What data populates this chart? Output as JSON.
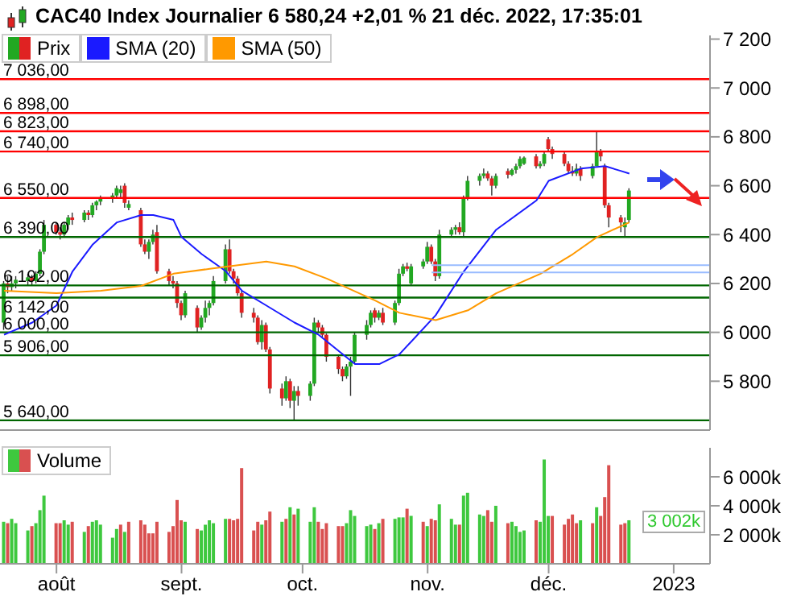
{
  "chart_data": [
    {
      "type": "candlestick",
      "title": "CAC40 Index Journalier 6 580,24 +2,01 % 21 déc. 2022, 17:35:01",
      "legend": "top left",
      "tick_labels": "y",
      "x": [
        "2022-07-19",
        "2022-07-20",
        "2022-07-21",
        "2022-07-22",
        "2022-07-25",
        "2022-07-26",
        "2022-07-27",
        "2022-07-28",
        "2022-07-29",
        "2022-08-01",
        "2022-08-02",
        "2022-08-03",
        "2022-08-04",
        "2022-08-05",
        "2022-08-08",
        "2022-08-09",
        "2022-08-10",
        "2022-08-11",
        "2022-08-12",
        "2022-08-15",
        "2022-08-16",
        "2022-08-17",
        "2022-08-18",
        "2022-08-19",
        "2022-08-22",
        "2022-08-23",
        "2022-08-24",
        "2022-08-25",
        "2022-08-26",
        "2022-08-29",
        "2022-08-30",
        "2022-08-31",
        "2022-09-01",
        "2022-09-02",
        "2022-09-05",
        "2022-09-06",
        "2022-09-07",
        "2022-09-08",
        "2022-09-09",
        "2022-09-12",
        "2022-09-13",
        "2022-09-14",
        "2022-09-15",
        "2022-09-16",
        "2022-09-19",
        "2022-09-20",
        "2022-09-21",
        "2022-09-22",
        "2022-09-23",
        "2022-09-26",
        "2022-09-27",
        "2022-09-28",
        "2022-09-29",
        "2022-09-30",
        "2022-10-03",
        "2022-10-04",
        "2022-10-05",
        "2022-10-06",
        "2022-10-07",
        "2022-10-10",
        "2022-10-11",
        "2022-10-12",
        "2022-10-13",
        "2022-10-14",
        "2022-10-17",
        "2022-10-18",
        "2022-10-19",
        "2022-10-20",
        "2022-10-21",
        "2022-10-24",
        "2022-10-25",
        "2022-10-26",
        "2022-10-27",
        "2022-10-28",
        "2022-10-31",
        "2022-11-01",
        "2022-11-02",
        "2022-11-03",
        "2022-11-04",
        "2022-11-07",
        "2022-11-08",
        "2022-11-09",
        "2022-11-10",
        "2022-11-11",
        "2022-11-14",
        "2022-11-15",
        "2022-11-16",
        "2022-11-17",
        "2022-11-18",
        "2022-11-21",
        "2022-11-22",
        "2022-11-23",
        "2022-11-24",
        "2022-11-25",
        "2022-11-28",
        "2022-11-29",
        "2022-11-30",
        "2022-12-01",
        "2022-12-02",
        "2022-12-05",
        "2022-12-06",
        "2022-12-07",
        "2022-12-08",
        "2022-12-09",
        "2022-12-12",
        "2022-12-13",
        "2022-12-14",
        "2022-12-15",
        "2022-12-16",
        "2022-12-19",
        "2022-12-20",
        "2022-12-21"
      ],
      "series": [
        {
          "name": "Prix",
          "ohlc": [
            [
              6040,
              6210,
              6010,
              6200
            ],
            [
              6200,
              6230,
              6160,
              6185
            ],
            [
              6185,
              6230,
              6170,
              6200
            ],
            [
              6200,
              6230,
              6180,
              6215
            ],
            [
              6210,
              6240,
              6190,
              6225
            ],
            [
              6225,
              6235,
              6190,
              6210
            ],
            [
              6210,
              6250,
              6200,
              6240
            ],
            [
              6240,
              6340,
              6230,
              6330
            ],
            [
              6330,
              6460,
              6320,
              6440
            ],
            [
              6440,
              6450,
              6400,
              6410
            ],
            [
              6410,
              6430,
              6380,
              6400
            ],
            [
              6400,
              6450,
              6390,
              6440
            ],
            [
              6440,
              6480,
              6420,
              6470
            ],
            [
              6470,
              6490,
              6440,
              6460
            ],
            [
              6460,
              6500,
              6450,
              6490
            ],
            [
              6490,
              6500,
              6460,
              6480
            ],
            [
              6480,
              6530,
              6470,
              6520
            ],
            [
              6520,
              6540,
              6500,
              6535
            ],
            [
              6535,
              6560,
              6520,
              6550
            ],
            [
              6550,
              6570,
              6530,
              6560
            ],
            [
              6560,
              6600,
              6550,
              6590
            ],
            [
              6570,
              6600,
              6550,
              6585
            ],
            [
              6600,
              6610,
              6510,
              6530
            ],
            [
              6510,
              6540,
              6500,
              6525
            ],
            [
              6500,
              6510,
              6350,
              6360
            ],
            [
              6360,
              6380,
              6320,
              6330
            ],
            [
              6330,
              6380,
              6300,
              6370
            ],
            [
              6370,
              6420,
              6360,
              6400
            ],
            [
              6410,
              6440,
              6240,
              6250
            ],
            [
              6250,
              6260,
              6190,
              6210
            ],
            [
              6210,
              6230,
              6180,
              6200
            ],
            [
              6200,
              6210,
              6100,
              6120
            ],
            [
              6120,
              6130,
              6050,
              6070
            ],
            [
              6070,
              6170,
              6060,
              6160
            ],
            [
              6100,
              6110,
              6000,
              6020
            ],
            [
              6020,
              6070,
              6010,
              6060
            ],
            [
              6060,
              6130,
              6040,
              6100
            ],
            [
              6100,
              6130,
              6070,
              6120
            ],
            [
              6120,
              6230,
              6110,
              6210
            ],
            [
              6210,
              6360,
              6200,
              6340
            ],
            [
              6340,
              6380,
              6240,
              6250
            ],
            [
              6250,
              6260,
              6200,
              6220
            ],
            [
              6220,
              6230,
              6150,
              6160
            ],
            [
              6160,
              6170,
              6060,
              6080
            ],
            [
              6080,
              6100,
              6040,
              6060
            ],
            [
              6060,
              6070,
              5950,
              5960
            ],
            [
              5960,
              6050,
              5930,
              6030
            ],
            [
              6030,
              6040,
              5920,
              5930
            ],
            [
              5930,
              5940,
              5750,
              5770
            ],
            [
              5770,
              5790,
              5700,
              5730
            ],
            [
              5730,
              5820,
              5720,
              5800
            ],
            [
              5800,
              5810,
              5690,
              5720
            ],
            [
              5720,
              5780,
              5640,
              5760
            ],
            [
              5760,
              5780,
              5700,
              5740
            ],
            [
              5740,
              5800,
              5720,
              5790
            ],
            [
              5790,
              6060,
              5780,
              6040
            ],
            [
              6040,
              6050,
              6000,
              6020
            ],
            [
              6020,
              6030,
              5980,
              5990
            ],
            [
              5990,
              5995,
              5880,
              5900
            ],
            [
              5900,
              5910,
              5830,
              5850
            ],
            [
              5850,
              5860,
              5800,
              5820
            ],
            [
              5820,
              5870,
              5810,
              5860
            ],
            [
              5860,
              5900,
              5740,
              5880
            ],
            [
              5880,
              6000,
              5870,
              5990
            ],
            [
              5990,
              6050,
              5970,
              6030
            ],
            [
              6030,
              6090,
              6020,
              6080
            ],
            [
              6090,
              6100,
              6040,
              6060
            ],
            [
              6060,
              6090,
              6050,
              6080
            ],
            [
              6080,
              6100,
              6030,
              6040
            ],
            [
              6040,
              6130,
              6030,
              6120
            ],
            [
              6120,
              6260,
              6110,
              6240
            ],
            [
              6240,
              6280,
              6230,
              6270
            ],
            [
              6270,
              6285,
              6250,
              6260
            ],
            [
              6200,
              6280,
              6190,
              6270
            ],
            [
              6270,
              6300,
              6260,
              6290
            ],
            [
              6290,
              6370,
              6280,
              6350
            ],
            [
              6350,
              6360,
              6280,
              6290
            ],
            [
              6290,
              6300,
              6210,
              6230
            ],
            [
              6230,
              6420,
              6220,
              6400
            ],
            [
              6400,
              6430,
              6390,
              6420
            ],
            [
              6420,
              6440,
              6400,
              6430
            ],
            [
              6430,
              6450,
              6400,
              6410
            ],
            [
              6410,
              6560,
              6390,
              6550
            ],
            [
              6550,
              6640,
              6540,
              6620
            ],
            [
              6620,
              6650,
              6600,
              6640
            ],
            [
              6640,
              6670,
              6630,
              6650
            ],
            [
              6650,
              6660,
              6620,
              6630
            ],
            [
              6630,
              6640,
              6560,
              6600
            ],
            [
              6600,
              6650,
              6590,
              6640
            ],
            [
              6660,
              6670,
              6630,
              6645
            ],
            [
              6645,
              6670,
              6640,
              6665
            ],
            [
              6665,
              6690,
              6650,
              6680
            ],
            [
              6680,
              6720,
              6670,
              6710
            ],
            [
              6690,
              6720,
              6685,
              6715
            ],
            [
              6720,
              6730,
              6670,
              6680
            ],
            [
              6680,
              6700,
              6670,
              6690
            ],
            [
              6690,
              6740,
              6680,
              6730
            ],
            [
              6790,
              6800,
              6740,
              6750
            ],
            [
              6750,
              6760,
              6710,
              6730
            ],
            [
              6730,
              6740,
              6680,
              6690
            ],
            [
              6690,
              6700,
              6650,
              6660
            ],
            [
              6660,
              6680,
              6640,
              6650
            ],
            [
              6650,
              6690,
              6640,
              6670
            ],
            [
              6670,
              6680,
              6620,
              6640
            ],
            [
              6640,
              6690,
              6630,
              6680
            ],
            [
              6680,
              6820,
              6680,
              6740
            ],
            [
              6740,
              6750,
              6700,
              6720
            ],
            [
              6680,
              6690,
              6510,
              6520
            ],
            [
              6520,
              6530,
              6430,
              6470
            ],
            [
              6470,
              6480,
              6410,
              6450
            ],
            [
              6430,
              6470,
              6390,
              6450
            ],
            [
              6460,
              6590,
              6450,
              6580.24
            ]
          ]
        },
        {
          "type": "line",
          "name": "SMA (20)",
          "color": "#1a1aff",
          "x": [
            "2022-07-19",
            "2022-07-26",
            "2022-08-01",
            "2022-08-05",
            "2022-08-10",
            "2022-08-16",
            "2022-08-22",
            "2022-08-25",
            "2022-08-30",
            "2022-09-01",
            "2022-09-06",
            "2022-09-12",
            "2022-09-16",
            "2022-09-22",
            "2022-09-29",
            "2022-10-05",
            "2022-10-11",
            "2022-10-14",
            "2022-10-20",
            "2022-10-25",
            "2022-11-03",
            "2022-11-10",
            "2022-11-18",
            "2022-11-28",
            "2022-12-01",
            "2022-12-09",
            "2022-12-15",
            "2022-12-19",
            "2022-12-21"
          ],
          "values": [
            5990,
            6040,
            6110,
            6250,
            6360,
            6450,
            6480,
            6480,
            6460,
            6390,
            6320,
            6250,
            6170,
            6110,
            6040,
            5990,
            5910,
            5870,
            5870,
            5910,
            6070,
            6250,
            6420,
            6540,
            6620,
            6670,
            6680,
            6660,
            6650
          ]
        },
        {
          "type": "line",
          "name": "SMA (50)",
          "color": "#ff9900",
          "x": [
            "2022-07-19",
            "2022-08-01",
            "2022-08-12",
            "2022-08-22",
            "2022-08-30",
            "2022-09-08",
            "2022-09-22",
            "2022-09-29",
            "2022-10-07",
            "2022-10-19",
            "2022-10-25",
            "2022-11-03",
            "2022-11-11",
            "2022-11-18",
            "2022-11-29",
            "2022-12-07",
            "2022-12-13",
            "2022-12-21"
          ],
          "values": [
            6170,
            6160,
            6170,
            6190,
            6240,
            6260,
            6290,
            6270,
            6220,
            6130,
            6080,
            6050,
            6090,
            6160,
            6240,
            6320,
            6390,
            6450
          ]
        },
        {
          "type": "line",
          "color": "#99bbff",
          "x": [
            "2022-11-02",
            "2023-01-10"
          ],
          "values": [
            6275,
            6275
          ]
        },
        {
          "type": "line",
          "color": "#99bbff",
          "x": [
            "2022-11-02",
            "2023-01-10"
          ],
          "values": [
            6245,
            6245
          ]
        }
      ],
      "ref_lines": [
        {
          "axis": "y",
          "value": 7036,
          "label": "7 036,00",
          "color": "#ff0000"
        },
        {
          "axis": "y",
          "value": 6898,
          "label": "6 898,00",
          "color": "#ff0000"
        },
        {
          "axis": "y",
          "value": 6823,
          "label": "6 823,00",
          "color": "#ff0000"
        },
        {
          "axis": "y",
          "value": 6740,
          "label": "6 740,00",
          "color": "#ff0000"
        },
        {
          "axis": "y",
          "value": 6550,
          "label": "6 550,00",
          "color": "#ff0000"
        },
        {
          "axis": "y",
          "value": 6390,
          "label": "6 390,00",
          "color": "#006600"
        },
        {
          "axis": "y",
          "value": 6192,
          "label": "6 192,00",
          "color": "#006600"
        },
        {
          "axis": "y",
          "value": 6142,
          "label": "6 142,00",
          "color": "#006600"
        },
        {
          "axis": "y",
          "value": 6000,
          "label": "6 000,00",
          "color": "#006600"
        },
        {
          "axis": "y",
          "value": 5906,
          "label": "5 906,00",
          "color": "#006600"
        },
        {
          "axis": "y",
          "value": 5640,
          "label": "5 640,00",
          "color": "#006600"
        }
      ],
      "xlim": [
        "2022-07-18",
        "2023-01-10"
      ],
      "ylim": [
        5600,
        7215
      ],
      "yticks": [
        {
          "value": 5800,
          "label": "5 800"
        },
        {
          "value": 6000,
          "label": "6 000"
        },
        {
          "value": 6200,
          "label": "6 200"
        },
        {
          "value": 6400,
          "label": "6 400"
        },
        {
          "value": 6600,
          "label": "6 600"
        },
        {
          "value": 6800,
          "label": "6 800"
        },
        {
          "value": 7000,
          "label": "7 000"
        },
        {
          "value": 7200,
          "label": "7 200"
        }
      ]
    },
    {
      "type": "bar",
      "legend": "top left",
      "x": [
        "2022-07-19",
        "2022-07-20",
        "2022-07-21",
        "2022-07-22",
        "2022-07-25",
        "2022-07-26",
        "2022-07-27",
        "2022-07-28",
        "2022-07-29",
        "2022-08-01",
        "2022-08-02",
        "2022-08-03",
        "2022-08-04",
        "2022-08-05",
        "2022-08-08",
        "2022-08-09",
        "2022-08-10",
        "2022-08-11",
        "2022-08-12",
        "2022-08-15",
        "2022-08-16",
        "2022-08-17",
        "2022-08-18",
        "2022-08-19",
        "2022-08-22",
        "2022-08-23",
        "2022-08-24",
        "2022-08-25",
        "2022-08-26",
        "2022-08-29",
        "2022-08-30",
        "2022-08-31",
        "2022-09-01",
        "2022-09-02",
        "2022-09-05",
        "2022-09-06",
        "2022-09-07",
        "2022-09-08",
        "2022-09-09",
        "2022-09-12",
        "2022-09-13",
        "2022-09-14",
        "2022-09-15",
        "2022-09-16",
        "2022-09-19",
        "2022-09-20",
        "2022-09-21",
        "2022-09-22",
        "2022-09-23",
        "2022-09-26",
        "2022-09-27",
        "2022-09-28",
        "2022-09-29",
        "2022-09-30",
        "2022-10-03",
        "2022-10-04",
        "2022-10-05",
        "2022-10-06",
        "2022-10-07",
        "2022-10-10",
        "2022-10-11",
        "2022-10-12",
        "2022-10-13",
        "2022-10-14",
        "2022-10-17",
        "2022-10-18",
        "2022-10-19",
        "2022-10-20",
        "2022-10-21",
        "2022-10-24",
        "2022-10-25",
        "2022-10-26",
        "2022-10-27",
        "2022-10-28",
        "2022-10-31",
        "2022-11-01",
        "2022-11-02",
        "2022-11-03",
        "2022-11-04",
        "2022-11-07",
        "2022-11-08",
        "2022-11-09",
        "2022-11-10",
        "2022-11-11",
        "2022-11-14",
        "2022-11-15",
        "2022-11-16",
        "2022-11-17",
        "2022-11-18",
        "2022-11-21",
        "2022-11-22",
        "2022-11-23",
        "2022-11-24",
        "2022-11-25",
        "2022-11-28",
        "2022-11-29",
        "2022-11-30",
        "2022-12-01",
        "2022-12-02",
        "2022-12-05",
        "2022-12-06",
        "2022-12-07",
        "2022-12-08",
        "2022-12-09",
        "2022-12-12",
        "2022-12-13",
        "2022-12-14",
        "2022-12-15",
        "2022-12-16",
        "2022-12-19",
        "2022-12-20",
        "2022-12-21"
      ],
      "series": [
        {
          "name": "Volume",
          "values": [
            2900,
            2800,
            3100,
            2800,
            2300,
            2600,
            2800,
            3700,
            4700,
            2800,
            2800,
            3000,
            2700,
            2900,
            2200,
            2600,
            2900,
            3000,
            2700,
            1800,
            2400,
            2700,
            2200,
            2900,
            3000,
            2700,
            2100,
            2100,
            2900,
            2200,
            2600,
            4400,
            3000,
            2900,
            2400,
            2300,
            2700,
            3000,
            2800,
            3100,
            3100,
            3000,
            3100,
            6600,
            2300,
            2900,
            2700,
            3000,
            3600,
            2900,
            3100,
            3900,
            3400,
            3800,
            2900,
            3900,
            2900,
            2400,
            2800,
            2600,
            2600,
            2800,
            3700,
            3300,
            2600,
            2700,
            2400,
            2800,
            3100,
            3100,
            3200,
            3200,
            3800,
            3300,
            2900,
            2600,
            3100,
            3000,
            4100,
            3100,
            2700,
            2700,
            4700,
            4900,
            3400,
            3300,
            3700,
            2900,
            4000,
            2800,
            2900,
            2600,
            2200,
            2300,
            3000,
            2900,
            7200,
            3300,
            3300,
            2700,
            3100,
            3400,
            2800,
            3000,
            2800,
            3900,
            3300,
            4600,
            6800,
            2700,
            2800,
            3002
          ],
          "colors": [
            "#3ec83e",
            "#d95050",
            "#3ec83e",
            "#3ec83e",
            "#3ec83e",
            "#d95050",
            "#3ec83e",
            "#3ec83e",
            "#3ec83e",
            "#d95050",
            "#d95050",
            "#3ec83e",
            "#3ec83e",
            "#d95050",
            "#3ec83e",
            "#d95050",
            "#3ec83e",
            "#3ec83e",
            "#3ec83e",
            "#3ec83e",
            "#3ec83e",
            "#d95050",
            "#3ec83e",
            "#d95050",
            "#d95050",
            "#d95050",
            "#d95050",
            "#d95050",
            "#d95050",
            "#d95050",
            "#d95050",
            "#d95050",
            "#d95050",
            "#3ec83e",
            "#d95050",
            "#3ec83e",
            "#3ec83e",
            "#3ec83e",
            "#3ec83e",
            "#3ec83e",
            "#d95050",
            "#d95050",
            "#d95050",
            "#d95050",
            "#d95050",
            "#d95050",
            "#3ec83e",
            "#d95050",
            "#d95050",
            "#3ec83e",
            "#d95050",
            "#3ec83e",
            "#d95050",
            "#3ec83e",
            "#3ec83e",
            "#3ec83e",
            "#d95050",
            "#d95050",
            "#d95050",
            "#d95050",
            "#d95050",
            "#3ec83e",
            "#3ec83e",
            "#3ec83e",
            "#3ec83e",
            "#3ec83e",
            "#d95050",
            "#3ec83e",
            "#d95050",
            "#3ec83e",
            "#3ec83e",
            "#3ec83e",
            "#d95050",
            "#3ec83e",
            "#d95050",
            "#3ec83e",
            "#d95050",
            "#d95050",
            "#3ec83e",
            "#3ec83e",
            "#3ec83e",
            "#d95050",
            "#3ec83e",
            "#3ec83e",
            "#3ec83e",
            "#3ec83e",
            "#d95050",
            "#d95050",
            "#3ec83e",
            "#d95050",
            "#3ec83e",
            "#3ec83e",
            "#3ec83e",
            "#3ec83e",
            "#d95050",
            "#3ec83e",
            "#3ec83e",
            "#3ec83e",
            "#d95050",
            "#d95050",
            "#d95050",
            "#d95050",
            "#d95050",
            "#3ec83e",
            "#d95050",
            "#3ec83e",
            "#d95050",
            "#d95050",
            "#d95050",
            "#d95050",
            "#d95050",
            "#3ec83e"
          ]
        }
      ],
      "annotations": [
        "3 002k"
      ],
      "xlim": [
        "2022-07-18",
        "2023-01-10"
      ],
      "xticks": [
        {
          "value": "2022-08-01",
          "label": "août"
        },
        {
          "value": "2022-09-01",
          "label": "sept."
        },
        {
          "value": "2022-10-01",
          "label": "oct."
        },
        {
          "value": "2022-11-01",
          "label": "nov."
        },
        {
          "value": "2022-12-01",
          "label": "déc."
        },
        {
          "value": "2023-01-01",
          "label": "2023"
        }
      ],
      "ylim": [
        0,
        8000
      ],
      "yticks": [
        {
          "value": 2000,
          "label": "2 000k"
        },
        {
          "value": 4000,
          "label": "4 000k"
        },
        {
          "value": 6000,
          "label": "6 000k"
        }
      ]
    }
  ]
}
